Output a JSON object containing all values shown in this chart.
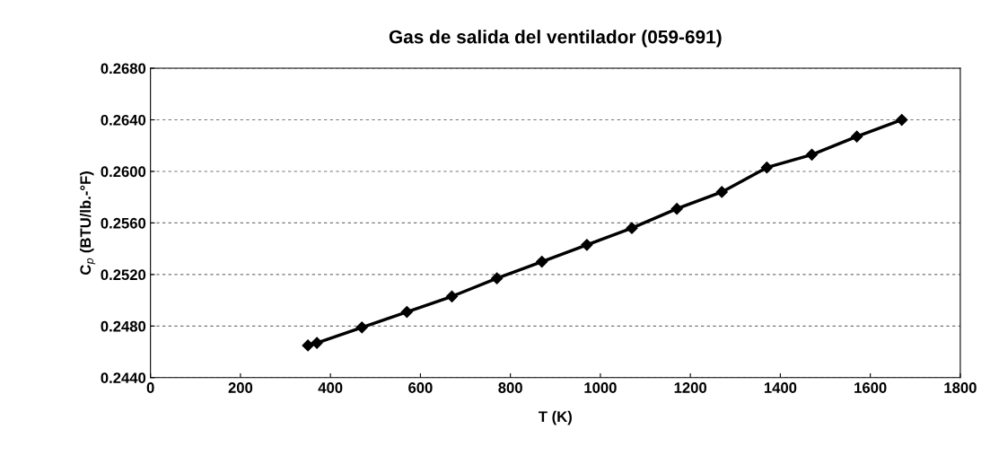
{
  "chart_data": {
    "type": "line",
    "title": "Gas de salida del ventilador (059-691)",
    "xlabel": "T (K)",
    "ylabel": "C$_{p}$ (BTU/lb.-°F)",
    "x": [
      350,
      370,
      470,
      570,
      670,
      770,
      870,
      970,
      1070,
      1170,
      1270,
      1370,
      1470,
      1570,
      1670
    ],
    "series": [
      {
        "color": "#000000",
        "values": [
          0.2465,
          0.2467,
          0.2479,
          0.2491,
          0.2503,
          0.2517,
          0.253,
          0.2543,
          0.2556,
          0.2571,
          0.2584,
          0.2603,
          0.2613,
          0.2627,
          0.264
        ]
      }
    ],
    "xlim": [
      0,
      1800
    ],
    "xticks": [
      0,
      200,
      400,
      600,
      800,
      1000,
      1200,
      1400,
      1600,
      1800
    ],
    "ylim": [
      0.244,
      0.268
    ],
    "yticks": [
      {
        "value": 0.244,
        "label": "0.2440"
      },
      {
        "value": 0.248,
        "label": "0.2480"
      },
      {
        "value": 0.252,
        "label": "0.2520"
      },
      {
        "value": 0.256,
        "label": "0.2560"
      },
      {
        "value": 0.26,
        "label": "0.2600"
      },
      {
        "value": 0.264,
        "label": "0.2640"
      },
      {
        "value": 0.268,
        "label": "0.2680"
      }
    ],
    "grid": "y",
    "marker": "diamond",
    "line_style": "solid",
    "legend": false
  }
}
